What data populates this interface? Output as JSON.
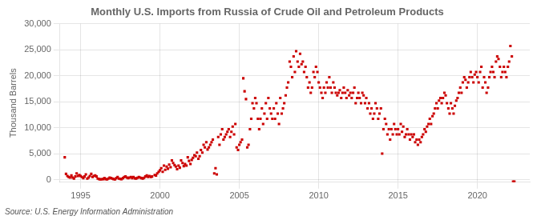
{
  "chart_data": {
    "type": "scatter",
    "title": "Monthly U.S. Imports from Russia of Crude Oil and Petroleum Products",
    "ylabel": "Thousand Barrels",
    "annotations": [
      "Source: U.S. Energy Information Administration"
    ],
    "color": "#CC0000",
    "marker": "square",
    "grid": true,
    "xlim": [
      1993.7,
      2023.3
    ],
    "xticks": [
      1995,
      2000,
      2005,
      2010,
      2015,
      2020
    ],
    "ylim": [
      -500,
      30000
    ],
    "yticks": [
      0,
      {
        "value": 5000,
        "label": "5,000"
      },
      {
        "value": 10000,
        "label": "10,000"
      },
      {
        "value": 15000,
        "label": "15,000"
      },
      {
        "value": 20000,
        "label": "20,000"
      },
      {
        "value": 25000,
        "label": "25,000"
      },
      {
        "value": 30000,
        "label": "30,000"
      }
    ],
    "x": [
      1994.0,
      1994.08,
      1994.17,
      1994.25,
      1994.33,
      1994.42,
      1994.5,
      1994.58,
      1994.67,
      1994.75,
      1994.83,
      1994.92,
      1995.0,
      1995.08,
      1995.17,
      1995.25,
      1995.33,
      1995.42,
      1995.5,
      1995.58,
      1995.67,
      1995.75,
      1995.83,
      1995.92,
      1996.0,
      1996.08,
      1996.17,
      1996.25,
      1996.33,
      1996.42,
      1996.5,
      1996.58,
      1996.67,
      1996.75,
      1996.83,
      1996.92,
      1997.0,
      1997.08,
      1997.17,
      1997.25,
      1997.33,
      1997.42,
      1997.5,
      1997.58,
      1997.67,
      1997.75,
      1997.83,
      1997.92,
      1998.0,
      1998.08,
      1998.17,
      1998.25,
      1998.33,
      1998.42,
      1998.5,
      1998.58,
      1998.67,
      1998.75,
      1998.83,
      1998.92,
      1999.0,
      1999.08,
      1999.17,
      1999.25,
      1999.33,
      1999.42,
      1999.5,
      1999.67,
      1999.75,
      1999.83,
      1999.92,
      2000.0,
      2000.08,
      2000.17,
      2000.25,
      2000.33,
      2000.42,
      2000.5,
      2000.58,
      2000.67,
      2000.75,
      2000.83,
      2000.92,
      2001.0,
      2001.08,
      2001.17,
      2001.25,
      2001.33,
      2001.42,
      2001.5,
      2001.58,
      2001.67,
      2001.75,
      2001.83,
      2001.92,
      2002.0,
      2002.08,
      2002.17,
      2002.25,
      2002.33,
      2002.42,
      2002.5,
      2002.58,
      2002.67,
      2002.75,
      2002.83,
      2002.92,
      2003.0,
      2003.08,
      2003.17,
      2003.25,
      2003.33,
      2003.42,
      2003.5,
      2003.58,
      2003.67,
      2003.75,
      2003.83,
      2003.92,
      2004.0,
      2004.08,
      2004.17,
      2004.25,
      2004.33,
      2004.42,
      2004.5,
      2004.58,
      2004.67,
      2004.75,
      2004.83,
      2004.92,
      2005.0,
      2005.08,
      2005.17,
      2005.25,
      2005.33,
      2005.42,
      2005.5,
      2005.58,
      2005.67,
      2005.75,
      2005.83,
      2005.92,
      2006.0,
      2006.08,
      2006.17,
      2006.25,
      2006.33,
      2006.42,
      2006.5,
      2006.58,
      2006.67,
      2006.75,
      2006.83,
      2006.92,
      2007.0,
      2007.08,
      2007.17,
      2007.25,
      2007.33,
      2007.42,
      2007.5,
      2007.58,
      2007.67,
      2007.75,
      2007.83,
      2007.92,
      2008.0,
      2008.08,
      2008.17,
      2008.25,
      2008.33,
      2008.42,
      2008.5,
      2008.58,
      2008.67,
      2008.75,
      2008.83,
      2008.92,
      2009.0,
      2009.08,
      2009.17,
      2009.25,
      2009.33,
      2009.42,
      2009.5,
      2009.58,
      2009.67,
      2009.75,
      2009.83,
      2009.92,
      2010.0,
      2010.08,
      2010.17,
      2010.25,
      2010.33,
      2010.42,
      2010.5,
      2010.58,
      2010.67,
      2010.75,
      2010.83,
      2010.92,
      2011.0,
      2011.08,
      2011.17,
      2011.25,
      2011.33,
      2011.42,
      2011.5,
      2011.58,
      2011.67,
      2011.75,
      2011.83,
      2011.92,
      2012.0,
      2012.08,
      2012.17,
      2012.25,
      2012.33,
      2012.42,
      2012.5,
      2012.58,
      2012.67,
      2012.75,
      2012.83,
      2012.92,
      2013.0,
      2013.08,
      2013.17,
      2013.25,
      2013.33,
      2013.42,
      2013.5,
      2013.58,
      2013.67,
      2013.75,
      2013.83,
      2013.92,
      2014.0,
      2014.08,
      2014.17,
      2014.25,
      2014.33,
      2014.42,
      2014.5,
      2014.58,
      2014.67,
      2014.75,
      2014.83,
      2014.92,
      2015.0,
      2015.08,
      2015.17,
      2015.25,
      2015.33,
      2015.42,
      2015.5,
      2015.58,
      2015.67,
      2015.75,
      2015.83,
      2015.92,
      2016.0,
      2016.08,
      2016.17,
      2016.25,
      2016.33,
      2016.42,
      2016.5,
      2016.58,
      2016.67,
      2016.75,
      2016.83,
      2016.92,
      2017.0,
      2017.08,
      2017.17,
      2017.25,
      2017.33,
      2017.42,
      2017.5,
      2017.58,
      2017.67,
      2017.75,
      2017.83,
      2017.92,
      2018.0,
      2018.08,
      2018.17,
      2018.25,
      2018.33,
      2018.42,
      2018.5,
      2018.58,
      2018.67,
      2018.75,
      2018.83,
      2018.92,
      2019.0,
      2019.08,
      2019.17,
      2019.25,
      2019.33,
      2019.42,
      2019.5,
      2019.58,
      2019.67,
      2019.75,
      2019.83,
      2019.92,
      2020.0,
      2020.08,
      2020.17,
      2020.25,
      2020.33,
      2020.42,
      2020.5,
      2020.58,
      2020.67,
      2020.75,
      2020.83,
      2020.92,
      2021.0,
      2021.08,
      2021.17,
      2021.25,
      2021.33,
      2021.42,
      2021.5,
      2021.58,
      2021.67,
      2021.75,
      2021.83,
      2021.92,
      2022.0,
      2022.08,
      2022.17,
      2022.25,
      2022.33
    ],
    "values": [
      4300,
      1100,
      700,
      500,
      400,
      800,
      400,
      200,
      600,
      1200,
      700,
      900,
      700,
      500,
      300,
      600,
      1000,
      200,
      400,
      700,
      1100,
      500,
      700,
      800,
      600,
      200,
      100,
      50,
      80,
      100,
      300,
      100,
      50,
      200,
      400,
      300,
      200,
      100,
      50,
      300,
      500,
      200,
      150,
      100,
      300,
      500,
      600,
      400,
      300,
      400,
      500,
      300,
      500,
      250,
      200,
      350,
      500,
      400,
      300,
      200,
      350,
      600,
      800,
      500,
      700,
      500,
      600,
      900,
      800,
      1200,
      1500,
      1800,
      2200,
      1500,
      2700,
      1900,
      2500,
      2100,
      2900,
      2400,
      3700,
      3200,
      2800,
      2500,
      2000,
      2700,
      2300,
      3700,
      3200,
      2600,
      3000,
      2700,
      4300,
      3600,
      3000,
      3800,
      4200,
      4700,
      4500,
      5200,
      4000,
      4500,
      5700,
      5200,
      6700,
      6200,
      7200,
      5800,
      6200,
      6700,
      7200,
      7700,
      1200,
      2200,
      1000,
      8200,
      6700,
      8700,
      9700,
      7700,
      8200,
      8700,
      9200,
      9700,
      8200,
      9200,
      10200,
      8700,
      10700,
      6200,
      5700,
      6700,
      7200,
      7700,
      19500,
      17000,
      15500,
      6200,
      6700,
      9700,
      11700,
      14700,
      13700,
      15700,
      14700,
      11700,
      9700,
      11700,
      13700,
      10700,
      12700,
      14700,
      11700,
      15700,
      13700,
      12700,
      11700,
      13700,
      11700,
      14700,
      12700,
      10700,
      15700,
      12700,
      13700,
      14700,
      16200,
      17700,
      18700,
      22700,
      21700,
      19700,
      23700,
      20700,
      24700,
      22700,
      21700,
      24200,
      22200,
      22700,
      20700,
      21700,
      19700,
      17700,
      18700,
      16700,
      17700,
      20700,
      19700,
      21700,
      20700,
      18700,
      17700,
      16700,
      15700,
      17700,
      16700,
      18700,
      17700,
      19700,
      17700,
      16700,
      18700,
      17700,
      16700,
      16200,
      16700,
      17200,
      15700,
      16700,
      17700,
      16700,
      15700,
      17200,
      16200,
      16700,
      15700,
      16700,
      17700,
      14700,
      15700,
      16700,
      15700,
      14700,
      16700,
      16200,
      14700,
      15700,
      13700,
      14700,
      12700,
      13700,
      11700,
      12700,
      14700,
      13700,
      11700,
      12700,
      13700,
      5000,
      9700,
      11700,
      10700,
      8700,
      9700,
      7700,
      9700,
      8700,
      10700,
      9700,
      8700,
      9700,
      8700,
      10700,
      9200,
      10200,
      8200,
      8700,
      9700,
      8700,
      7700,
      8700,
      8200,
      8700,
      7200,
      7700,
      6700,
      7700,
      7200,
      8200,
      8700,
      9700,
      9200,
      10200,
      10700,
      11700,
      10700,
      12200,
      12700,
      13700,
      14700,
      13700,
      15200,
      15700,
      14700,
      15700,
      16700,
      16200,
      14700,
      13700,
      12700,
      14700,
      13700,
      12700,
      14200,
      15200,
      15700,
      16700,
      17700,
      16700,
      18700,
      19700,
      19200,
      17700,
      18700,
      19700,
      20700,
      19700,
      18700,
      20200,
      20700,
      19700,
      18700,
      20700,
      21700,
      17700,
      19700,
      18700,
      16700,
      17700,
      19700,
      20700,
      21700,
      20700,
      19700,
      22700,
      23700,
      23200,
      21700,
      19700,
      20700,
      21700,
      20700,
      19700,
      21700,
      22700,
      25700,
      23700,
      -400,
      -400
    ]
  }
}
